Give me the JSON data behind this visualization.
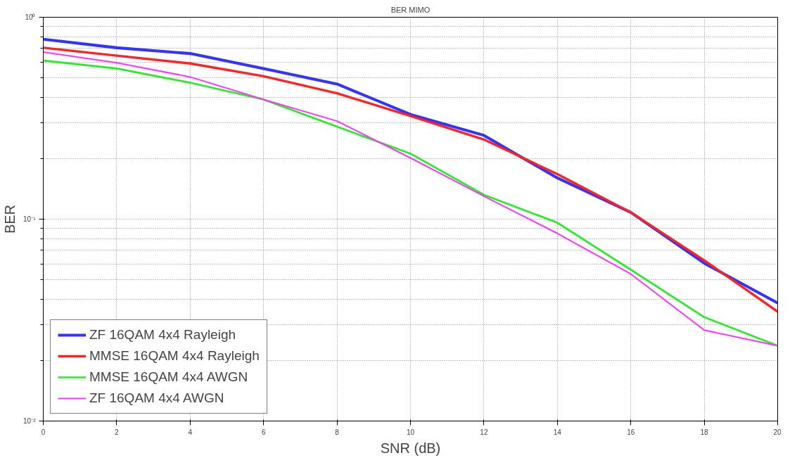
{
  "chart_data": {
    "type": "line",
    "title": "BER MIMO",
    "xlabel": "SNR (dB)",
    "ylabel": "BER",
    "log": "y",
    "grid": true,
    "legend": "bottom left",
    "line_style": "solid",
    "marker": "none",
    "x": [
      0,
      2,
      4,
      6,
      8,
      10,
      12,
      14,
      16,
      18,
      20
    ],
    "xlim": [
      0,
      20
    ],
    "xticks": [
      0,
      2,
      4,
      6,
      8,
      10,
      12,
      14,
      16,
      18,
      20
    ],
    "ylim": [
      0.01,
      1
    ],
    "yticks": [
      {
        "value": 0.01,
        "label": "10⁻²"
      },
      {
        "value": 0.1,
        "label": "10⁻¹"
      },
      {
        "value": 1,
        "label": "10⁰"
      }
    ],
    "series": [
      {
        "name": "ZF 16QAM 4x4 Rayleigh",
        "color": "#3333ff",
        "values": [
          0.778,
          0.706,
          0.661,
          0.557,
          0.467,
          0.33,
          0.26,
          0.16,
          0.108,
          0.0605,
          0.0384
        ]
      },
      {
        "name": "MMSE 16QAM 4x4 Rayleigh",
        "color": "#ff2222",
        "values": [
          0.706,
          0.645,
          0.59,
          0.51,
          0.42,
          0.324,
          0.248,
          0.167,
          0.108,
          0.0625,
          0.0348
        ]
      },
      {
        "name": "MMSE 16QAM 4x4 AWGN",
        "color": "#22ee22",
        "values": [
          0.61,
          0.557,
          0.474,
          0.391,
          0.287,
          0.211,
          0.132,
          0.096,
          0.0562,
          0.0327,
          0.0236
        ]
      },
      {
        "name": "ZF 16QAM 4x4 AWGN",
        "color": "#ff33ff",
        "values": [
          0.672,
          0.595,
          0.506,
          0.391,
          0.306,
          0.201,
          0.13,
          0.085,
          0.0535,
          0.0282,
          0.0236
        ]
      }
    ]
  }
}
